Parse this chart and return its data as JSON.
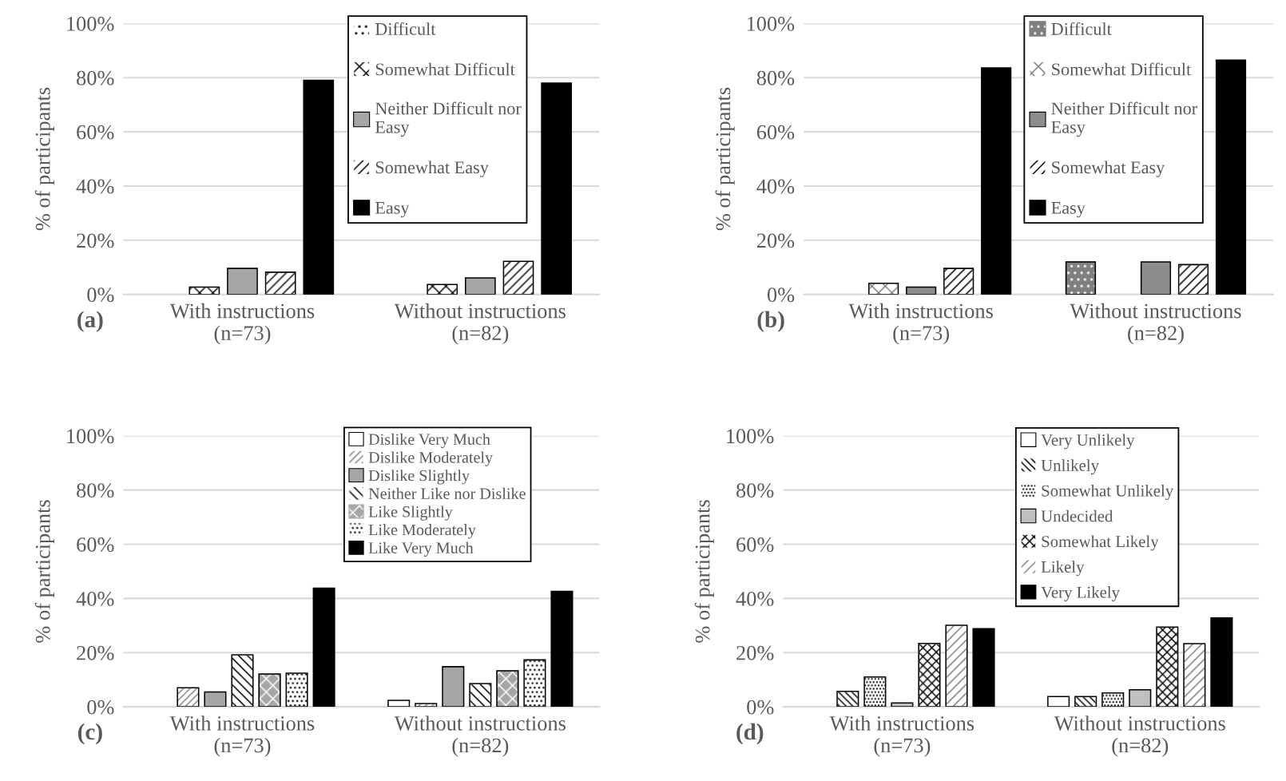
{
  "chart_data": [
    {
      "type": "bar",
      "categories": [
        "With instructions\n(n=73)",
        "Without instructions\n(n=82)"
      ],
      "ylabel": "% of participants",
      "ylim": [
        0,
        100
      ],
      "yticks": [
        {
          "value": 0,
          "label": "0%"
        },
        {
          "value": 20,
          "label": "20%"
        },
        {
          "value": 40,
          "label": "40%"
        },
        {
          "value": 60,
          "label": "60%"
        },
        {
          "value": 80,
          "label": "80%"
        },
        {
          "value": 100,
          "label": "100%"
        }
      ],
      "grid": "y",
      "legend": "top",
      "annotations": [
        "(a)"
      ],
      "series": [
        {
          "name": "Difficult",
          "color": "#ffffff",
          "values": [
            0,
            0
          ]
        },
        {
          "name": "Somewhat Difficult",
          "color": "#ffffff",
          "values": [
            2.7,
            3.7
          ]
        },
        {
          "name": "Neither Difficult nor\nEasy",
          "color": "#a6a6a6",
          "values": [
            9.6,
            6.1
          ]
        },
        {
          "name": "Somewhat Easy",
          "color": "#ffffff",
          "values": [
            8.2,
            12.2
          ]
        },
        {
          "name": "Easy",
          "color": "#000000",
          "values": [
            79,
            78
          ]
        }
      ]
    },
    {
      "type": "bar",
      "categories": [
        "With instructions\n(n=73)",
        "Without instructions\n(n=82)"
      ],
      "ylabel": "% of participants",
      "ylim": [
        0,
        100
      ],
      "yticks": [
        {
          "value": 0,
          "label": "0%"
        },
        {
          "value": 20,
          "label": "20%"
        },
        {
          "value": 40,
          "label": "40%"
        },
        {
          "value": 60,
          "label": "60%"
        },
        {
          "value": 80,
          "label": "80%"
        },
        {
          "value": 100,
          "label": "100%"
        }
      ],
      "grid": "y",
      "legend": "top",
      "annotations": [
        "(b)"
      ],
      "series": [
        {
          "name": "Difficult",
          "color": "#7f7f7f",
          "values": [
            0,
            12
          ]
        },
        {
          "name": "Somewhat Difficult",
          "color": "#ffffff",
          "values": [
            4.1,
            0
          ]
        },
        {
          "name": "Neither Difficult nor\nEasy",
          "color": "#8c8c8c",
          "values": [
            2.7,
            12
          ]
        },
        {
          "name": "Somewhat Easy",
          "color": "#ffffff",
          "values": [
            9.6,
            11
          ]
        },
        {
          "name": "Easy",
          "color": "#000000",
          "values": [
            83.6,
            86.5
          ]
        }
      ]
    },
    {
      "type": "bar",
      "categories": [
        "With instructions\n(n=73)",
        "Without instructions\n(n=82)"
      ],
      "ylabel": "% of participants",
      "ylim": [
        0,
        100
      ],
      "yticks": [
        {
          "value": 0,
          "label": "0%"
        },
        {
          "value": 20,
          "label": "20%"
        },
        {
          "value": 40,
          "label": "40%"
        },
        {
          "value": 60,
          "label": "60%"
        },
        {
          "value": 80,
          "label": "80%"
        },
        {
          "value": 100,
          "label": "100%"
        }
      ],
      "grid": "y",
      "legend": "top",
      "annotations": [
        "(c)"
      ],
      "series": [
        {
          "name": "Dislike Very Much",
          "color": "#ffffff",
          "values": [
            0,
            2.4
          ]
        },
        {
          "name": "Dislike Moderately",
          "color": "#ffffff",
          "values": [
            7,
            1.2
          ]
        },
        {
          "name": "Dislike Slightly",
          "color": "#a6a6a6",
          "values": [
            5.5,
            14.8
          ]
        },
        {
          "name": "Neither Like nor Dislike",
          "color": "#ffffff",
          "values": [
            19.2,
            8.6
          ]
        },
        {
          "name": "Like Slightly",
          "color": "#a6a6a6",
          "values": [
            12.1,
            13.3
          ]
        },
        {
          "name": "Like Moderately",
          "color": "#ffffff",
          "values": [
            12.4,
            17.3
          ]
        },
        {
          "name": "Like Very Much",
          "color": "#000000",
          "values": [
            43.8,
            42.6
          ]
        }
      ]
    },
    {
      "type": "bar",
      "categories": [
        "With instructions\n(n=73)",
        "Without instructions\n(n=82)"
      ],
      "ylabel": "% of participants",
      "ylim": [
        0,
        100
      ],
      "yticks": [
        {
          "value": 0,
          "label": "0%"
        },
        {
          "value": 20,
          "label": "20%"
        },
        {
          "value": 40,
          "label": "40%"
        },
        {
          "value": 60,
          "label": "60%"
        },
        {
          "value": 80,
          "label": "80%"
        },
        {
          "value": 100,
          "label": "100%"
        }
      ],
      "grid": "y",
      "legend": "top",
      "annotations": [
        "(d)"
      ],
      "series": [
        {
          "name": "Very Unlikely",
          "color": "#ffffff",
          "values": [
            0,
            3.8
          ]
        },
        {
          "name": "Unlikely",
          "color": "#ffffff",
          "values": [
            5.7,
            3.8
          ]
        },
        {
          "name": "Somewhat Unlikely",
          "color": "#ffffff",
          "values": [
            11,
            5.1
          ]
        },
        {
          "name": "Undecided",
          "color": "#bfbfbf",
          "values": [
            1.4,
            6.3
          ]
        },
        {
          "name": "Somewhat Likely",
          "color": "#ffffff",
          "values": [
            23.4,
            29.4
          ]
        },
        {
          "name": "Likely",
          "color": "#ffffff",
          "values": [
            30.1,
            23.3
          ]
        },
        {
          "name": "Very Likely",
          "color": "#000000",
          "values": [
            28.8,
            32.8
          ]
        }
      ]
    }
  ]
}
